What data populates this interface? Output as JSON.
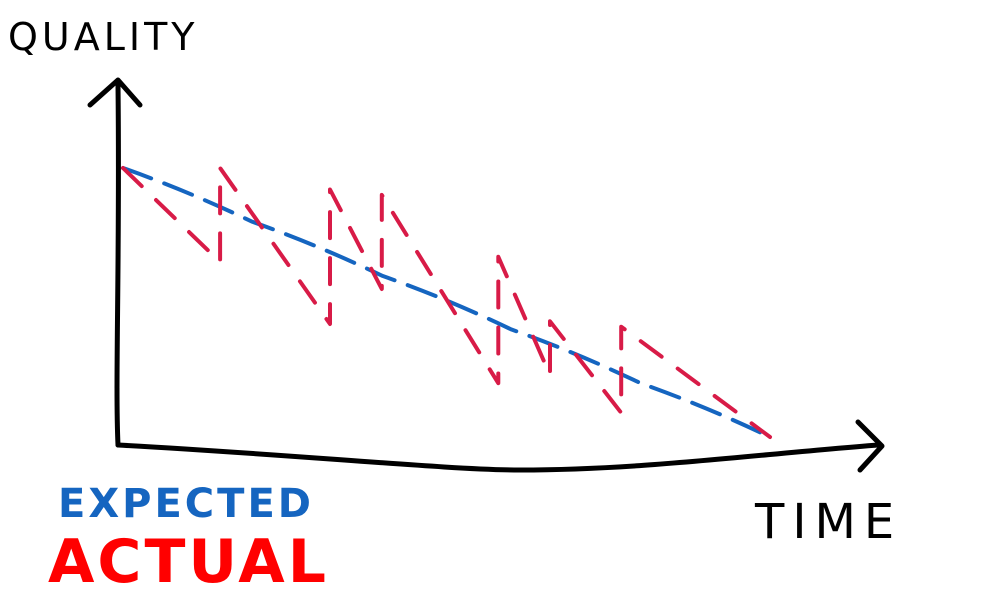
{
  "chart_data": {
    "type": "line",
    "xlabel": "TIME",
    "ylabel": "QUALITY",
    "xlim": [
      0,
      100
    ],
    "ylim": [
      0,
      100
    ],
    "grid": false,
    "series": [
      {
        "name": "EXPECTED",
        "color": "#1565c0",
        "x": [
          0,
          20,
          40,
          60,
          80,
          100
        ],
        "y": [
          100,
          80,
          60,
          40,
          20,
          0
        ]
      },
      {
        "name": "ACTUAL",
        "color": "#d81b47",
        "x": [
          0,
          15,
          15,
          32,
          32,
          40,
          40,
          58,
          58,
          66,
          66,
          77,
          77,
          100
        ],
        "y": [
          100,
          65,
          100,
          42,
          92,
          55,
          90,
          20,
          67,
          23,
          43,
          9,
          41,
          0
        ]
      }
    ],
    "legend": {
      "position": "bottom-left",
      "items": [
        {
          "label": "EXPECTED",
          "color": "#1565c0"
        },
        {
          "label": "ACTUAL",
          "color": "#ff0000"
        }
      ]
    },
    "axis_color": "#000000"
  }
}
